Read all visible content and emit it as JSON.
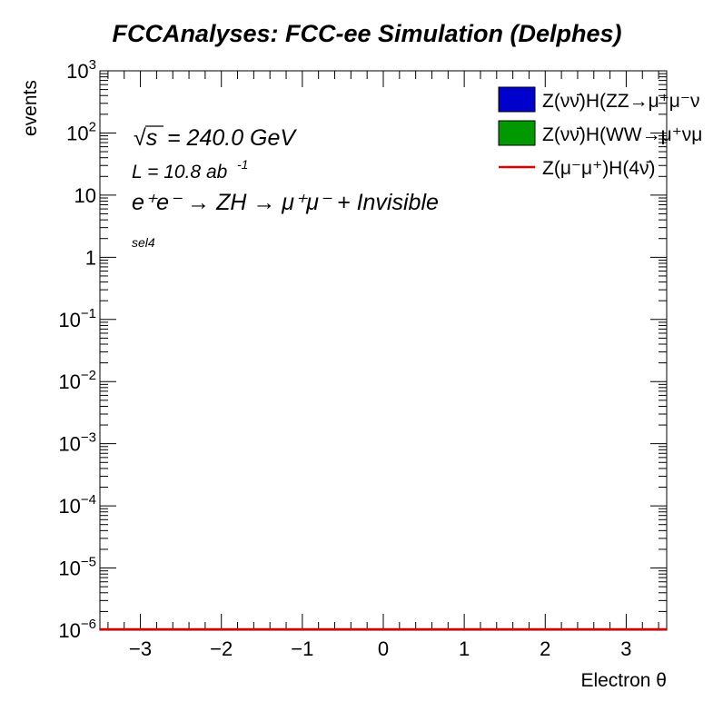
{
  "chart_data": {
    "type": "line",
    "title": "FCCAnalyses: FCC-ee Simulation (Delphes)",
    "xlabel": "Electron θ",
    "ylabel": "events",
    "xlim": [
      -3.5,
      3.5
    ],
    "ylim": [
      1e-06,
      1000
    ],
    "ylog": true,
    "x_ticks": [
      -3,
      -2,
      -1,
      0,
      1,
      2,
      3
    ],
    "x_tick_labels": [
      "−3",
      "−2",
      "−1",
      "0",
      "1",
      "2",
      "3"
    ],
    "y_ticks": [
      {
        "value": 1000,
        "base": "10",
        "exp": "3"
      },
      {
        "value": 100,
        "base": "10",
        "exp": "2"
      },
      {
        "value": 10,
        "base": "10",
        "exp": ""
      },
      {
        "value": 1,
        "base": "1",
        "exp": ""
      },
      {
        "value": 0.1,
        "base": "10",
        "exp": "−1"
      },
      {
        "value": 0.01,
        "base": "10",
        "exp": "−2"
      },
      {
        "value": 0.001,
        "base": "10",
        "exp": "−3"
      },
      {
        "value": 0.0001,
        "base": "10",
        "exp": "−4"
      },
      {
        "value": 1e-05,
        "base": "10",
        "exp": "−5"
      },
      {
        "value": 1e-06,
        "base": "10",
        "exp": "−6"
      }
    ],
    "grid": false,
    "legend_position": "top-right",
    "series": [
      {
        "name": "Z(νν̄)H(ZZ→μ⁺μ⁻ν",
        "style": "fill",
        "color": "#0000cc",
        "x": [
          -3.5,
          3.5
        ],
        "y": [
          1e-06,
          1e-06
        ]
      },
      {
        "name": "Z(νν̄)H(WW→μ⁺νμ",
        "style": "fill",
        "color": "#009900",
        "x": [
          -3.5,
          3.5
        ],
        "y": [
          1e-06,
          1e-06
        ]
      },
      {
        "name": "Z(μ⁻μ⁺)H(4ν̄)",
        "style": "line",
        "color": "#dd0000",
        "x": [
          -3.5,
          3.5
        ],
        "y": [
          1e-06,
          1e-06
        ]
      }
    ],
    "annotations": {
      "sqrt_s": "= 240.0 GeV",
      "sqrt_symbol": "√s",
      "lumi": "L = 10.8 ab",
      "lumi_exp": "-1",
      "process": "e⁺e⁻ → ZH → μ⁺μ⁻ + Invisible",
      "selection": "sel4"
    }
  }
}
